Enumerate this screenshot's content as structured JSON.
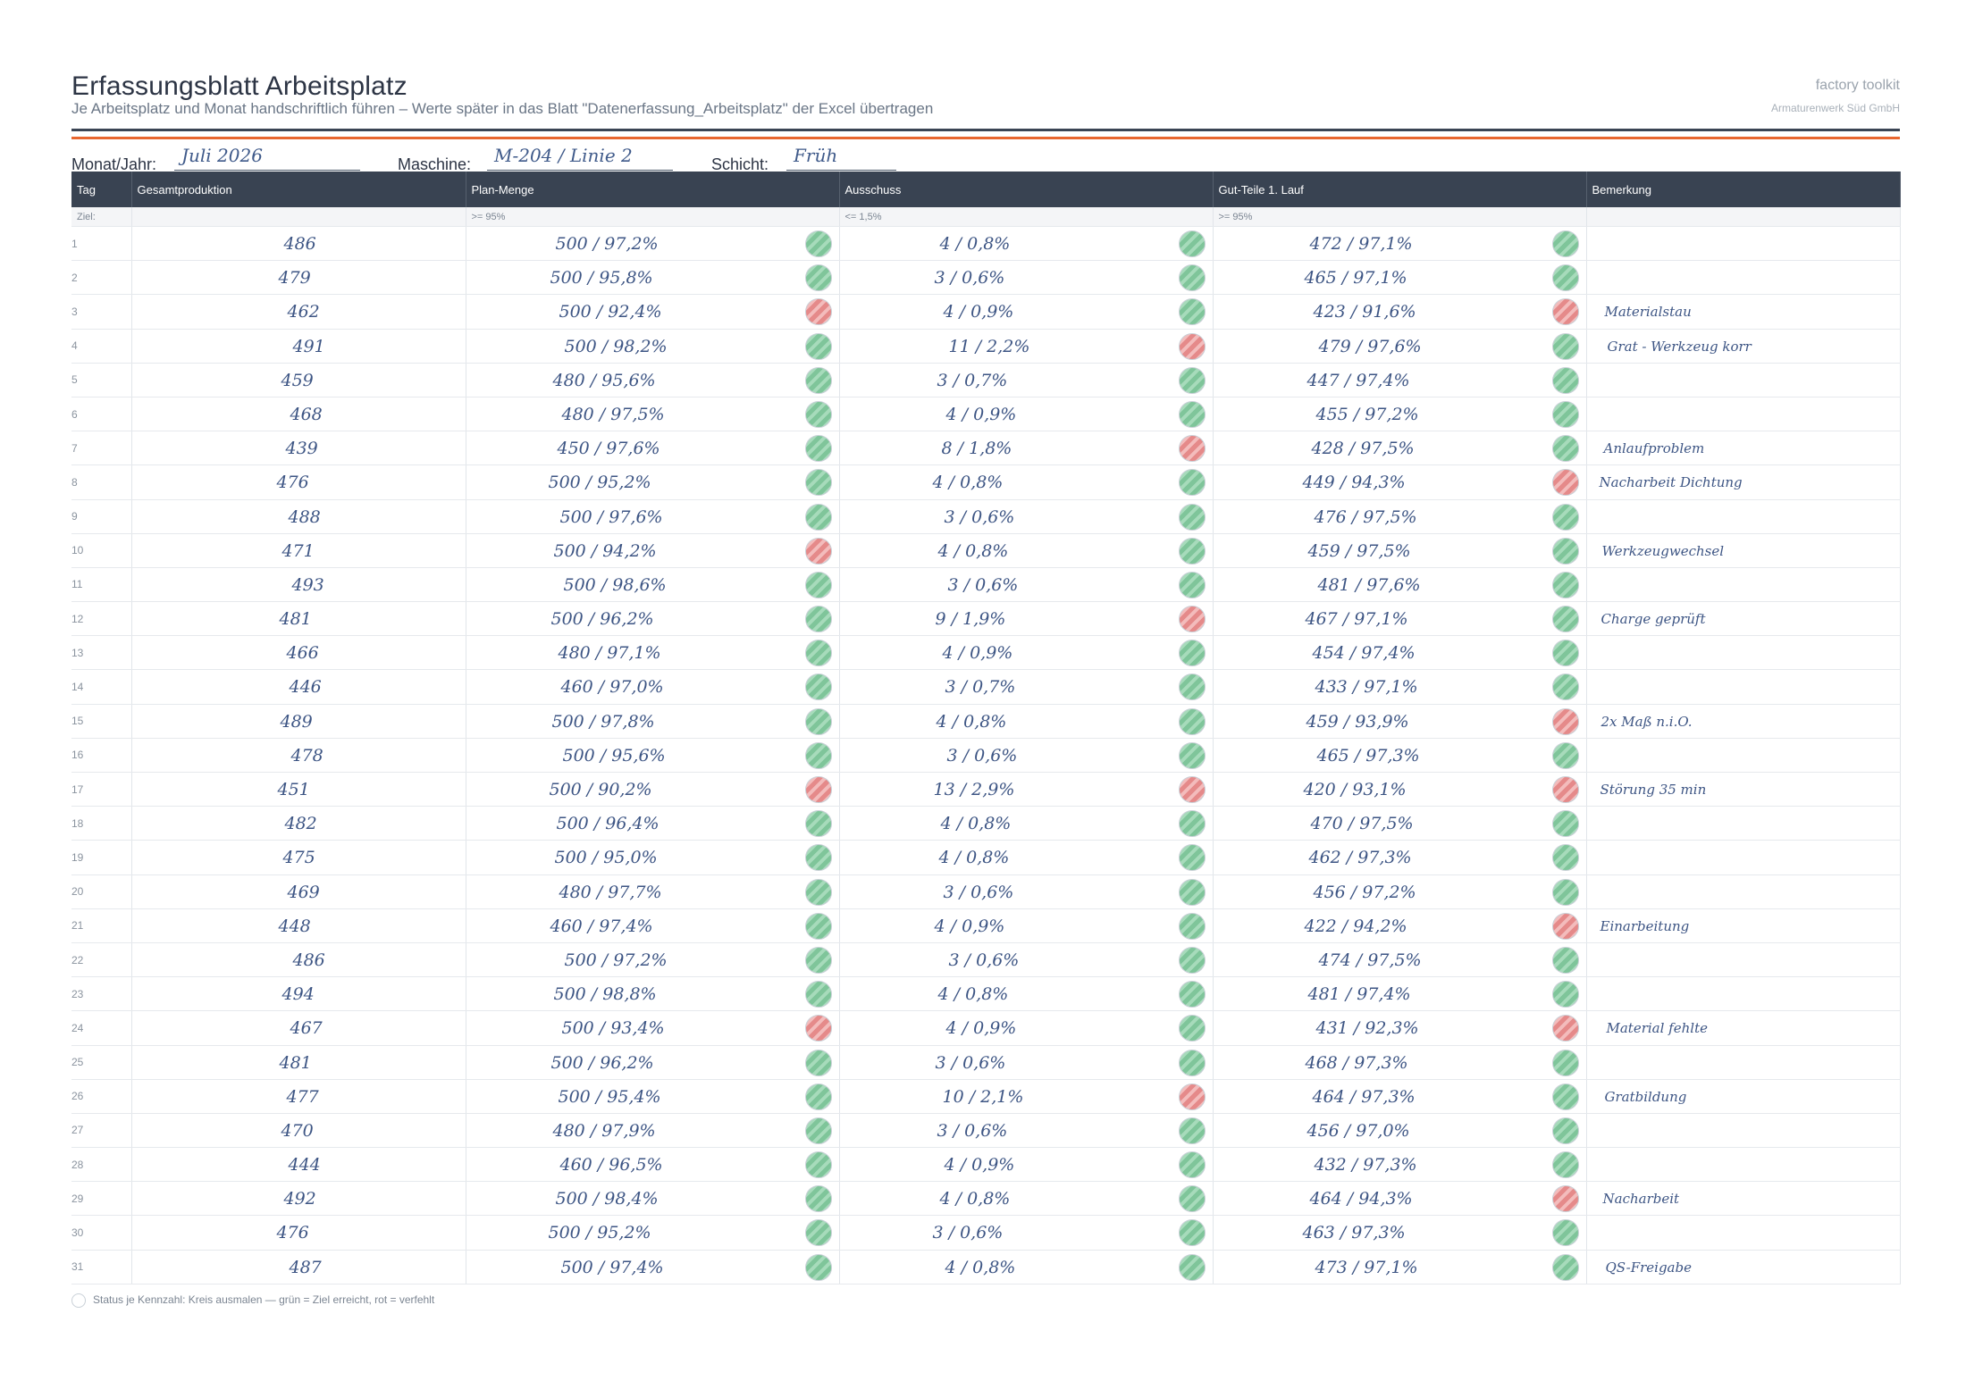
{
  "header": {
    "title": "Erfassungsblatt Arbeitsplatz",
    "subtitle": "Je Arbeitsplatz und Monat handschriftlich führen – Werte später in das Blatt \"Datenerfassung_Arbeitsplatz\" der Excel übertragen",
    "brand": "factory toolkit",
    "company": "Armaturenwerk Süd GmbH"
  },
  "meta": {
    "month_label": "Monat/Jahr:",
    "month_value": "Juli 2026",
    "machine_label": "Maschine:",
    "machine_value": "M-204 / Linie 2",
    "shift_label": "Schicht:",
    "shift_value": "Früh"
  },
  "colors": {
    "header_bg": "#394352",
    "accent": "#e8662f",
    "status_green": "#7fc59a",
    "status_red": "#e58a8a",
    "handwriting": "#3d5584"
  },
  "table": {
    "columns": [
      "Tag",
      "Gesamtproduktion",
      "Plan-Menge",
      "Ausschuss",
      "Gut-Teile 1. Lauf",
      "Bemerkung"
    ],
    "target_row": {
      "label": "Ziel:",
      "plan": ">= 95%",
      "scrap": "<= 1,5%",
      "good": ">= 95%"
    },
    "rows": [
      {
        "tag": "1",
        "gesamt": "486",
        "plan": "500 / 97,2%",
        "plan_status": "green",
        "scrap": "4 / 0,8%",
        "scrap_status": "green",
        "good": "472 / 97,1%",
        "good_status": "green",
        "note": ""
      },
      {
        "tag": "2",
        "gesamt": "479",
        "plan": "500 / 95,8%",
        "plan_status": "green",
        "scrap": "3 / 0,6%",
        "scrap_status": "green",
        "good": "465 / 97,1%",
        "good_status": "green",
        "note": ""
      },
      {
        "tag": "3",
        "gesamt": "462",
        "plan": "500 / 92,4%",
        "plan_status": "red",
        "scrap": "4 / 0,9%",
        "scrap_status": "green",
        "good": "423 / 91,6%",
        "good_status": "red",
        "note": "Materialstau"
      },
      {
        "tag": "4",
        "gesamt": "491",
        "plan": "500 / 98,2%",
        "plan_status": "green",
        "scrap": "11 / 2,2%",
        "scrap_status": "red",
        "good": "479 / 97,6%",
        "good_status": "green",
        "note": "Grat - Werkzeug korr"
      },
      {
        "tag": "5",
        "gesamt": "459",
        "plan": "480 / 95,6%",
        "plan_status": "green",
        "scrap": "3 / 0,7%",
        "scrap_status": "green",
        "good": "447 / 97,4%",
        "good_status": "green",
        "note": ""
      },
      {
        "tag": "6",
        "gesamt": "468",
        "plan": "480 / 97,5%",
        "plan_status": "green",
        "scrap": "4 / 0,9%",
        "scrap_status": "green",
        "good": "455 / 97,2%",
        "good_status": "green",
        "note": ""
      },
      {
        "tag": "7",
        "gesamt": "439",
        "plan": "450 / 97,6%",
        "plan_status": "green",
        "scrap": "8 / 1,8%",
        "scrap_status": "red",
        "good": "428 / 97,5%",
        "good_status": "green",
        "note": "Anlaufproblem"
      },
      {
        "tag": "8",
        "gesamt": "476",
        "plan": "500 / 95,2%",
        "plan_status": "green",
        "scrap": "4 / 0,8%",
        "scrap_status": "green",
        "good": "449 / 94,3%",
        "good_status": "red",
        "note": "Nacharbeit Dichtung"
      },
      {
        "tag": "9",
        "gesamt": "488",
        "plan": "500 / 97,6%",
        "plan_status": "green",
        "scrap": "3 / 0,6%",
        "scrap_status": "green",
        "good": "476 / 97,5%",
        "good_status": "green",
        "note": ""
      },
      {
        "tag": "10",
        "gesamt": "471",
        "plan": "500 / 94,2%",
        "plan_status": "red",
        "scrap": "4 / 0,8%",
        "scrap_status": "green",
        "good": "459 / 97,5%",
        "good_status": "green",
        "note": "Werkzeugwechsel"
      },
      {
        "tag": "11",
        "gesamt": "493",
        "plan": "500 / 98,6%",
        "plan_status": "green",
        "scrap": "3 / 0,6%",
        "scrap_status": "green",
        "good": "481 / 97,6%",
        "good_status": "green",
        "note": ""
      },
      {
        "tag": "12",
        "gesamt": "481",
        "plan": "500 / 96,2%",
        "plan_status": "green",
        "scrap": "9 / 1,9%",
        "scrap_status": "red",
        "good": "467 / 97,1%",
        "good_status": "green",
        "note": "Charge geprüft"
      },
      {
        "tag": "13",
        "gesamt": "466",
        "plan": "480 / 97,1%",
        "plan_status": "green",
        "scrap": "4 / 0,9%",
        "scrap_status": "green",
        "good": "454 / 97,4%",
        "good_status": "green",
        "note": ""
      },
      {
        "tag": "14",
        "gesamt": "446",
        "plan": "460 / 97,0%",
        "plan_status": "green",
        "scrap": "3 / 0,7%",
        "scrap_status": "green",
        "good": "433 / 97,1%",
        "good_status": "green",
        "note": ""
      },
      {
        "tag": "15",
        "gesamt": "489",
        "plan": "500 / 97,8%",
        "plan_status": "green",
        "scrap": "4 / 0,8%",
        "scrap_status": "green",
        "good": "459 / 93,9%",
        "good_status": "red",
        "note": "2x Maß n.i.O."
      },
      {
        "tag": "16",
        "gesamt": "478",
        "plan": "500 / 95,6%",
        "plan_status": "green",
        "scrap": "3 / 0,6%",
        "scrap_status": "green",
        "good": "465 / 97,3%",
        "good_status": "green",
        "note": ""
      },
      {
        "tag": "17",
        "gesamt": "451",
        "plan": "500 / 90,2%",
        "plan_status": "red",
        "scrap": "13 / 2,9%",
        "scrap_status": "red",
        "good": "420 / 93,1%",
        "good_status": "red",
        "note": "Störung 35 min"
      },
      {
        "tag": "18",
        "gesamt": "482",
        "plan": "500 / 96,4%",
        "plan_status": "green",
        "scrap": "4 / 0,8%",
        "scrap_status": "green",
        "good": "470 / 97,5%",
        "good_status": "green",
        "note": ""
      },
      {
        "tag": "19",
        "gesamt": "475",
        "plan": "500 / 95,0%",
        "plan_status": "green",
        "scrap": "4 / 0,8%",
        "scrap_status": "green",
        "good": "462 / 97,3%",
        "good_status": "green",
        "note": ""
      },
      {
        "tag": "20",
        "gesamt": "469",
        "plan": "480 / 97,7%",
        "plan_status": "green",
        "scrap": "3 / 0,6%",
        "scrap_status": "green",
        "good": "456 / 97,2%",
        "good_status": "green",
        "note": ""
      },
      {
        "tag": "21",
        "gesamt": "448",
        "plan": "460 / 97,4%",
        "plan_status": "green",
        "scrap": "4 / 0,9%",
        "scrap_status": "green",
        "good": "422 / 94,2%",
        "good_status": "red",
        "note": "Einarbeitung"
      },
      {
        "tag": "22",
        "gesamt": "486",
        "plan": "500 / 97,2%",
        "plan_status": "green",
        "scrap": "3 / 0,6%",
        "scrap_status": "green",
        "good": "474 / 97,5%",
        "good_status": "green",
        "note": ""
      },
      {
        "tag": "23",
        "gesamt": "494",
        "plan": "500 / 98,8%",
        "plan_status": "green",
        "scrap": "4 / 0,8%",
        "scrap_status": "green",
        "good": "481 / 97,4%",
        "good_status": "green",
        "note": ""
      },
      {
        "tag": "24",
        "gesamt": "467",
        "plan": "500 / 93,4%",
        "plan_status": "red",
        "scrap": "4 / 0,9%",
        "scrap_status": "green",
        "good": "431 / 92,3%",
        "good_status": "red",
        "note": "Material fehlte"
      },
      {
        "tag": "25",
        "gesamt": "481",
        "plan": "500 / 96,2%",
        "plan_status": "green",
        "scrap": "3 / 0,6%",
        "scrap_status": "green",
        "good": "468 / 97,3%",
        "good_status": "green",
        "note": ""
      },
      {
        "tag": "26",
        "gesamt": "477",
        "plan": "500 / 95,4%",
        "plan_status": "green",
        "scrap": "10 / 2,1%",
        "scrap_status": "red",
        "good": "464 / 97,3%",
        "good_status": "green",
        "note": "Gratbildung"
      },
      {
        "tag": "27",
        "gesamt": "470",
        "plan": "480 / 97,9%",
        "plan_status": "green",
        "scrap": "3 / 0,6%",
        "scrap_status": "green",
        "good": "456 / 97,0%",
        "good_status": "green",
        "note": ""
      },
      {
        "tag": "28",
        "gesamt": "444",
        "plan": "460 / 96,5%",
        "plan_status": "green",
        "scrap": "4 / 0,9%",
        "scrap_status": "green",
        "good": "432 / 97,3%",
        "good_status": "green",
        "note": ""
      },
      {
        "tag": "29",
        "gesamt": "492",
        "plan": "500 / 98,4%",
        "plan_status": "green",
        "scrap": "4 / 0,8%",
        "scrap_status": "green",
        "good": "464 / 94,3%",
        "good_status": "red",
        "note": "Nacharbeit"
      },
      {
        "tag": "30",
        "gesamt": "476",
        "plan": "500 / 95,2%",
        "plan_status": "green",
        "scrap": "3 / 0,6%",
        "scrap_status": "green",
        "good": "463 / 97,3%",
        "good_status": "green",
        "note": ""
      },
      {
        "tag": "31",
        "gesamt": "487",
        "plan": "500 / 97,4%",
        "plan_status": "green",
        "scrap": "4 / 0,8%",
        "scrap_status": "green",
        "good": "473 / 97,1%",
        "good_status": "green",
        "note": "QS-Freigabe"
      }
    ]
  },
  "legend": {
    "text": "Status je Kennzahl: Kreis ausmalen — grün = Ziel erreicht, rot = verfehlt"
  }
}
